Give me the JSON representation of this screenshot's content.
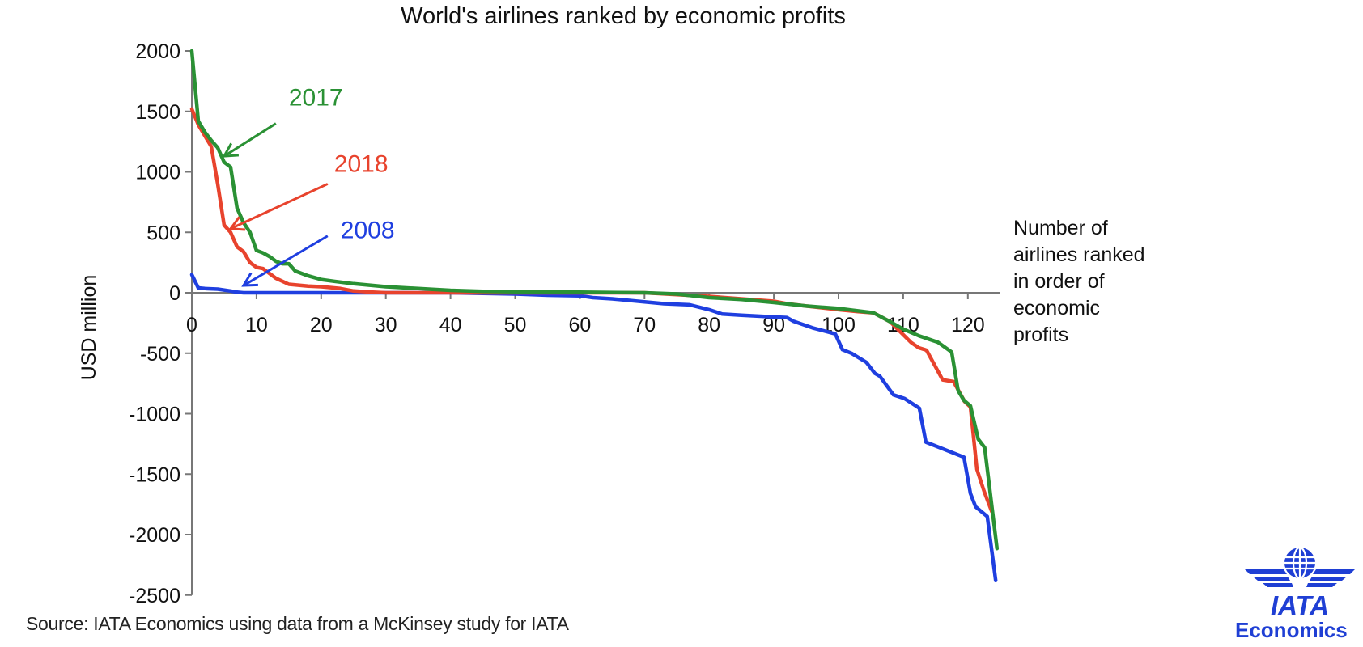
{
  "chart_data": {
    "type": "line",
    "title": "World's airlines ranked by economic profits",
    "xlabel": "Number of airlines ranked in order of economic profits",
    "xlabel_lines": [
      "Number of",
      "airlines ranked",
      "in order of",
      "economic",
      "profits"
    ],
    "ylabel": "USD million",
    "xlim": [
      0,
      125
    ],
    "ylim": [
      -2500,
      2000
    ],
    "xticks": [
      0,
      10,
      20,
      30,
      40,
      50,
      60,
      70,
      80,
      90,
      100,
      110,
      120
    ],
    "yticks": [
      2000,
      1500,
      1000,
      500,
      0,
      -500,
      -1000,
      -1500,
      -2000,
      -2500
    ],
    "grid": false,
    "legend": "inline-arrows",
    "series": [
      {
        "name": "2017",
        "color": "#2a9134",
        "label_pos": [
          15,
          1550
        ],
        "arrow_from": [
          13,
          1400
        ],
        "arrow_to": [
          5,
          1130
        ],
        "points": [
          [
            0,
            2000
          ],
          [
            1,
            1420
          ],
          [
            2,
            1330
          ],
          [
            3,
            1260
          ],
          [
            4,
            1200
          ],
          [
            5,
            1080
          ],
          [
            6,
            1040
          ],
          [
            7,
            700
          ],
          [
            8,
            580
          ],
          [
            9,
            500
          ],
          [
            10,
            350
          ],
          [
            11,
            330
          ],
          [
            12,
            300
          ],
          [
            13,
            260
          ],
          [
            14,
            240
          ],
          [
            15,
            240
          ],
          [
            16,
            180
          ],
          [
            18,
            140
          ],
          [
            20,
            110
          ],
          [
            22,
            95
          ],
          [
            25,
            75
          ],
          [
            28,
            60
          ],
          [
            30,
            50
          ],
          [
            35,
            35
          ],
          [
            40,
            20
          ],
          [
            45,
            12
          ],
          [
            50,
            8
          ],
          [
            60,
            5
          ],
          [
            70,
            0
          ],
          [
            75,
            -10
          ],
          [
            80,
            -40
          ],
          [
            85,
            -55
          ],
          [
            90,
            -80
          ],
          [
            95,
            -110
          ],
          [
            100,
            -130
          ],
          [
            103,
            -150
          ],
          [
            105.4,
            -165
          ],
          [
            108,
            -240
          ],
          [
            110,
            -300
          ],
          [
            112.4,
            -355
          ],
          [
            115.4,
            -410
          ],
          [
            117.5,
            -490
          ],
          [
            118.5,
            -810
          ],
          [
            119.4,
            -890
          ],
          [
            120.4,
            -935
          ],
          [
            121.6,
            -1210
          ],
          [
            122.6,
            -1280
          ],
          [
            124.5,
            -2115
          ]
        ]
      },
      {
        "name": "2018",
        "color": "#e8432d",
        "label_pos": [
          22,
          1000
        ],
        "arrow_from": [
          21,
          900
        ],
        "arrow_to": [
          6,
          530
        ],
        "points": [
          [
            0,
            1520
          ],
          [
            1,
            1390
          ],
          [
            2,
            1300
          ],
          [
            3,
            1210
          ],
          [
            4,
            900
          ],
          [
            5,
            560
          ],
          [
            6,
            500
          ],
          [
            7,
            380
          ],
          [
            8,
            340
          ],
          [
            9,
            250
          ],
          [
            10,
            210
          ],
          [
            11,
            200
          ],
          [
            12,
            160
          ],
          [
            13,
            120
          ],
          [
            15,
            70
          ],
          [
            18,
            55
          ],
          [
            20,
            50
          ],
          [
            23,
            35
          ],
          [
            25,
            15
          ],
          [
            28,
            5
          ],
          [
            30,
            0
          ],
          [
            40,
            0
          ],
          [
            50,
            0
          ],
          [
            60,
            0
          ],
          [
            70,
            0
          ],
          [
            80,
            -30
          ],
          [
            90,
            -70
          ],
          [
            92,
            -90
          ],
          [
            95,
            -110
          ],
          [
            100,
            -140
          ],
          [
            103,
            -155
          ],
          [
            105.4,
            -165
          ],
          [
            108,
            -240
          ],
          [
            111.2,
            -410
          ],
          [
            112.4,
            -455
          ],
          [
            113.6,
            -475
          ],
          [
            116.1,
            -720
          ],
          [
            117.8,
            -735
          ],
          [
            119.5,
            -900
          ],
          [
            120.4,
            -945
          ],
          [
            121.4,
            -1460
          ],
          [
            122.5,
            -1640
          ],
          [
            123.7,
            -1810
          ]
        ]
      },
      {
        "name": "2008",
        "color": "#1f3fe0",
        "label_pos": [
          23,
          450
        ],
        "arrow_from": [
          21,
          470
        ],
        "arrow_to": [
          8,
          60
        ],
        "points": [
          [
            0,
            150
          ],
          [
            1,
            40
          ],
          [
            2,
            35
          ],
          [
            4,
            30
          ],
          [
            6,
            15
          ],
          [
            7,
            5
          ],
          [
            8,
            0
          ],
          [
            20,
            0
          ],
          [
            30,
            0
          ],
          [
            40,
            0
          ],
          [
            45,
            -5
          ],
          [
            50,
            -10
          ],
          [
            55,
            -20
          ],
          [
            60,
            -25
          ],
          [
            62,
            -40
          ],
          [
            65,
            -50
          ],
          [
            70,
            -75
          ],
          [
            73,
            -90
          ],
          [
            77,
            -100
          ],
          [
            80,
            -140
          ],
          [
            82,
            -175
          ],
          [
            85,
            -185
          ],
          [
            90,
            -200
          ],
          [
            92,
            -205
          ],
          [
            93,
            -235
          ],
          [
            96,
            -290
          ],
          [
            99.5,
            -340
          ],
          [
            100.6,
            -470
          ],
          [
            102,
            -500
          ],
          [
            104.3,
            -575
          ],
          [
            105.6,
            -665
          ],
          [
            106.4,
            -690
          ],
          [
            108.5,
            -845
          ],
          [
            110.2,
            -875
          ],
          [
            112.5,
            -955
          ],
          [
            113.5,
            -1235
          ],
          [
            119.4,
            -1360
          ],
          [
            120.4,
            -1660
          ],
          [
            121.2,
            -1770
          ],
          [
            123,
            -1850
          ],
          [
            124.3,
            -2380
          ]
        ]
      }
    ]
  },
  "source": "Source: IATA Economics using data from a McKinsey study for IATA",
  "logo": {
    "wordmark": "IATA",
    "subtitle": "Economics",
    "color": "#1f3fd4",
    "icon": "globe-wings-icon"
  }
}
